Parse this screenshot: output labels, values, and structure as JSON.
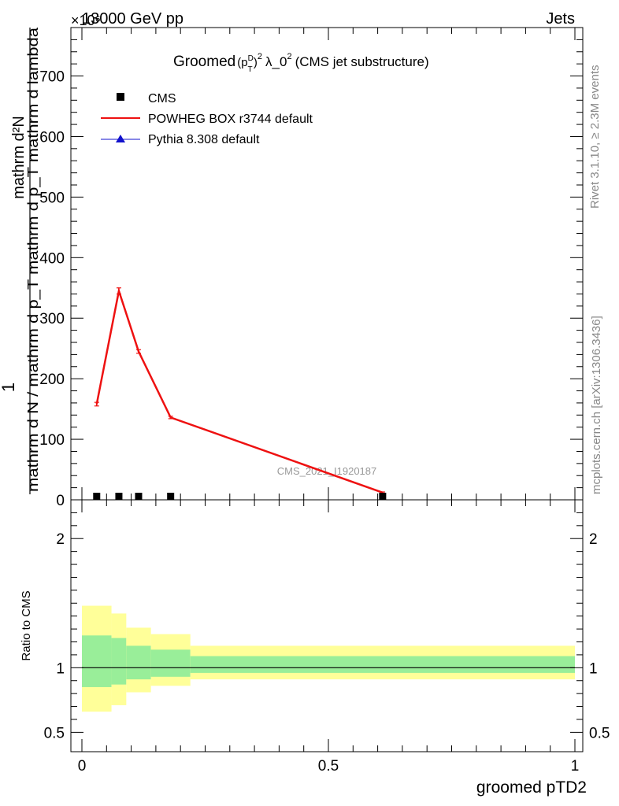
{
  "header": {
    "left": "13000 GeV pp",
    "right": "Jets",
    "exponent": "×10⁶"
  },
  "side_text": {
    "rivet": "Rivet 3.1.10, ≥ 2.3M events",
    "mcplots": "mcplots.cern.ch [arXiv:1306.3436]"
  },
  "watermark": "CMS_2021_I1920187",
  "colors": {
    "cms": "#000000",
    "powheg": "#ee1111",
    "pythia": "#1111cc",
    "band_inner": "#99ee99",
    "band_outer": "#ffff99"
  },
  "chart_data": [
    {
      "type": "line",
      "title": "Groomed (p_T^D)^2 λ_0^2 (CMS jet substructure)",
      "title_parts": {
        "prefix": "Groomed",
        "p": "(p",
        "t": "T",
        "d": "D",
        "close": ")",
        "sq1": "2",
        "lambda": "λ_0",
        "sq2": "2",
        "suffix": "(CMS jet substructure)"
      },
      "ylabel_numerator": "mathrm d²N",
      "ylabel_denominator": "mathrm d N / mathrm d p_T mathrm d p_T mathrm d lambda",
      "ylabel_one": "1",
      "xlim": [
        0,
        1
      ],
      "ylim": [
        0,
        780
      ],
      "y_scale_factor": "×10⁶",
      "yticks": [
        0,
        100,
        200,
        300,
        400,
        500,
        600,
        700
      ],
      "legend_position": "top-left",
      "legend": [
        "CMS",
        "POWHEG BOX r3744 default",
        "Pythia 8.308 default"
      ],
      "series": [
        {
          "name": "CMS",
          "marker": "square",
          "x": [
            0.03,
            0.075,
            0.115,
            0.18,
            0.61
          ],
          "y": [
            1,
            1,
            1,
            1,
            1
          ]
        },
        {
          "name": "POWHEG BOX r3744 default",
          "marker": "line",
          "x": [
            0.03,
            0.075,
            0.115,
            0.18,
            0.61
          ],
          "y": [
            158,
            345,
            245,
            136,
            12
          ],
          "yerr": [
            3,
            5,
            3,
            2,
            1
          ]
        },
        {
          "name": "Pythia 8.308 default",
          "marker": "triangle",
          "x": [],
          "y": []
        }
      ]
    },
    {
      "type": "area",
      "ylabel": "Ratio to CMS",
      "xlabel": "groomed pTD2",
      "xlim": [
        0,
        1
      ],
      "ylim": [
        0.35,
        2.3
      ],
      "yticks": [
        0.5,
        1,
        2
      ],
      "xticks": [
        0,
        0.5,
        1
      ],
      "xtick_labels": [
        "0",
        "0.5",
        "1"
      ],
      "reference_line": 1,
      "bins": [
        {
          "xlo": 0.0,
          "xhi": 0.06,
          "inner": [
            0.85,
            1.25
          ],
          "outer": [
            0.66,
            1.48
          ]
        },
        {
          "xlo": 0.06,
          "xhi": 0.09,
          "inner": [
            0.87,
            1.23
          ],
          "outer": [
            0.71,
            1.42
          ]
        },
        {
          "xlo": 0.09,
          "xhi": 0.14,
          "inner": [
            0.91,
            1.17
          ],
          "outer": [
            0.81,
            1.31
          ]
        },
        {
          "xlo": 0.14,
          "xhi": 0.22,
          "inner": [
            0.93,
            1.14
          ],
          "outer": [
            0.86,
            1.26
          ]
        },
        {
          "xlo": 0.22,
          "xhi": 1.0,
          "inner": [
            0.96,
            1.09
          ],
          "outer": [
            0.91,
            1.17
          ]
        }
      ]
    }
  ]
}
